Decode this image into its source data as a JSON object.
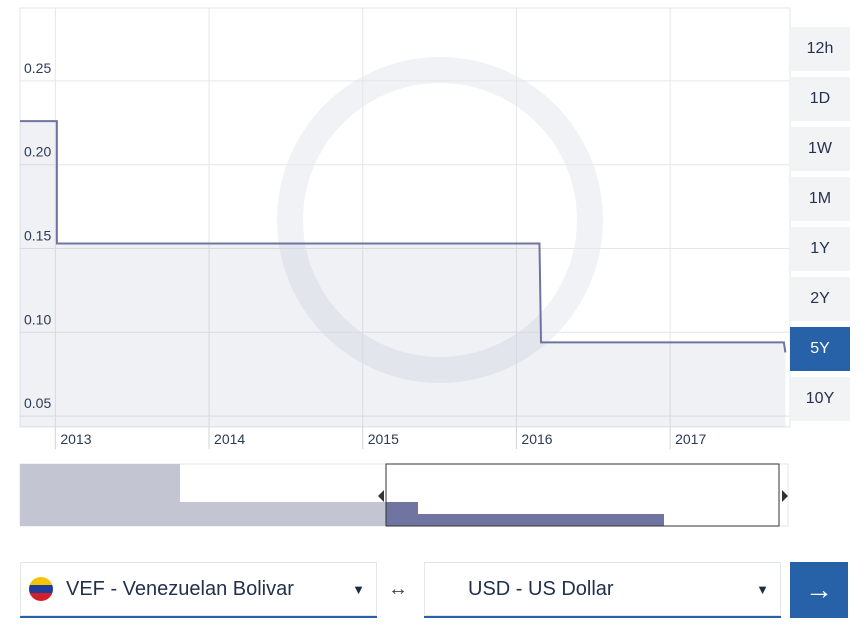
{
  "chart_data": {
    "type": "area",
    "x": [
      2012.77,
      2013.01,
      2013.01,
      2016.15,
      2016.16,
      2017.74,
      2017.75
    ],
    "series": [
      {
        "color": "#6f74a0",
        "values": [
          0.226,
          0.226,
          0.153,
          0.153,
          0.094,
          0.094,
          0.088
        ]
      }
    ],
    "xlim": [
      2012.77,
      2017.78
    ],
    "xticks": [
      2013,
      2014,
      2015,
      2016,
      2017
    ],
    "ylim": [
      0.0435,
      0.2935
    ],
    "yticks": [
      {
        "value": 0.05,
        "label": "0.05"
      },
      {
        "value": 0.1,
        "label": "0.10"
      },
      0.15,
      {
        "value": 0.2,
        "label": "0.20"
      },
      0.25
    ],
    "grid": true
  },
  "ranges": [
    "12h",
    "1D",
    "1W",
    "1M",
    "1Y",
    "2Y",
    "5Y",
    "10Y"
  ],
  "converter": {
    "from": "VEF - Venezuelan Bolivar",
    "swap": "↔",
    "to": "USD - US Dollar",
    "go": "→"
  }
}
